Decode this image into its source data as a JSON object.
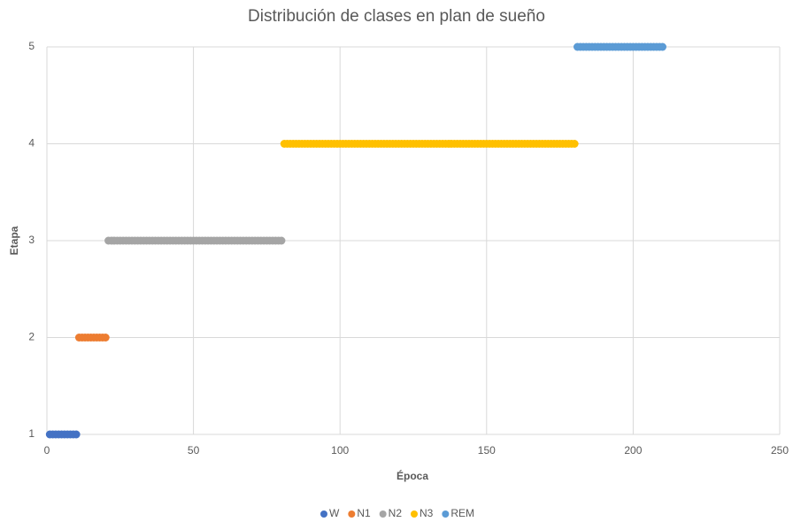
{
  "chart_data": {
    "type": "scatter",
    "title": "Distribución de clases en plan de sueño",
    "x_label": "Época",
    "y_label": "Etapa",
    "xlim": [
      0,
      250
    ],
    "xticks": [
      0,
      50,
      100,
      150,
      200,
      250
    ],
    "ylim": [
      1,
      5
    ],
    "yticks": [
      1,
      2,
      3,
      4,
      5
    ],
    "grid": true,
    "legend": "bottom",
    "series": [
      {
        "name": "W",
        "color": "#4472c4",
        "x": [
          1,
          2,
          3,
          4,
          5,
          6,
          7,
          8,
          9,
          10
        ],
        "values": [
          1,
          1,
          1,
          1,
          1,
          1,
          1,
          1,
          1,
          1
        ]
      },
      {
        "name": "N1",
        "color": "#ed7d31",
        "x": [
          11,
          12,
          13,
          14,
          15,
          16,
          17,
          18,
          19,
          20
        ],
        "values": [
          2,
          2,
          2,
          2,
          2,
          2,
          2,
          2,
          2,
          2
        ]
      },
      {
        "name": "N2",
        "color": "#a5a5a5",
        "x": [
          21,
          22,
          23,
          24,
          25,
          26,
          27,
          28,
          29,
          30,
          31,
          32,
          33,
          34,
          35,
          36,
          37,
          38,
          39,
          40,
          41,
          42,
          43,
          44,
          45,
          46,
          47,
          48,
          49,
          50,
          51,
          52,
          53,
          54,
          55,
          56,
          57,
          58,
          59,
          60,
          61,
          62,
          63,
          64,
          65,
          66,
          67,
          68,
          69,
          70,
          71,
          72,
          73,
          74,
          75,
          76,
          77,
          78,
          79,
          80
        ],
        "values": [
          3,
          3,
          3,
          3,
          3,
          3,
          3,
          3,
          3,
          3,
          3,
          3,
          3,
          3,
          3,
          3,
          3,
          3,
          3,
          3,
          3,
          3,
          3,
          3,
          3,
          3,
          3,
          3,
          3,
          3,
          3,
          3,
          3,
          3,
          3,
          3,
          3,
          3,
          3,
          3,
          3,
          3,
          3,
          3,
          3,
          3,
          3,
          3,
          3,
          3,
          3,
          3,
          3,
          3,
          3,
          3,
          3,
          3,
          3,
          3
        ]
      },
      {
        "name": "N3",
        "color": "#ffc000",
        "x": [
          81,
          82,
          83,
          84,
          85,
          86,
          87,
          88,
          89,
          90,
          91,
          92,
          93,
          94,
          95,
          96,
          97,
          98,
          99,
          100,
          101,
          102,
          103,
          104,
          105,
          106,
          107,
          108,
          109,
          110,
          111,
          112,
          113,
          114,
          115,
          116,
          117,
          118,
          119,
          120,
          121,
          122,
          123,
          124,
          125,
          126,
          127,
          128,
          129,
          130,
          131,
          132,
          133,
          134,
          135,
          136,
          137,
          138,
          139,
          140,
          141,
          142,
          143,
          144,
          145,
          146,
          147,
          148,
          149,
          150,
          151,
          152,
          153,
          154,
          155,
          156,
          157,
          158,
          159,
          160,
          161,
          162,
          163,
          164,
          165,
          166,
          167,
          168,
          169,
          170,
          171,
          172,
          173,
          174,
          175,
          176,
          177,
          178,
          179,
          180
        ],
        "values": [
          4,
          4,
          4,
          4,
          4,
          4,
          4,
          4,
          4,
          4,
          4,
          4,
          4,
          4,
          4,
          4,
          4,
          4,
          4,
          4,
          4,
          4,
          4,
          4,
          4,
          4,
          4,
          4,
          4,
          4,
          4,
          4,
          4,
          4,
          4,
          4,
          4,
          4,
          4,
          4,
          4,
          4,
          4,
          4,
          4,
          4,
          4,
          4,
          4,
          4,
          4,
          4,
          4,
          4,
          4,
          4,
          4,
          4,
          4,
          4,
          4,
          4,
          4,
          4,
          4,
          4,
          4,
          4,
          4,
          4,
          4,
          4,
          4,
          4,
          4,
          4,
          4,
          4,
          4,
          4,
          4,
          4,
          4,
          4,
          4,
          4,
          4,
          4,
          4,
          4,
          4,
          4,
          4,
          4,
          4,
          4,
          4,
          4,
          4,
          4
        ]
      },
      {
        "name": "REM",
        "color": "#5b9bd5",
        "x": [
          181,
          182,
          183,
          184,
          185,
          186,
          187,
          188,
          189,
          190,
          191,
          192,
          193,
          194,
          195,
          196,
          197,
          198,
          199,
          200,
          201,
          202,
          203,
          204,
          205,
          206,
          207,
          208,
          209,
          210
        ],
        "values": [
          5,
          5,
          5,
          5,
          5,
          5,
          5,
          5,
          5,
          5,
          5,
          5,
          5,
          5,
          5,
          5,
          5,
          5,
          5,
          5,
          5,
          5,
          5,
          5,
          5,
          5,
          5,
          5,
          5,
          5
        ]
      }
    ]
  }
}
